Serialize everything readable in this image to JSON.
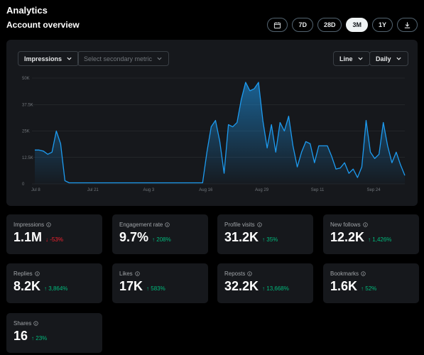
{
  "header": {
    "title": "Analytics",
    "section": "Account overview"
  },
  "ranges": [
    {
      "label": "",
      "icon": "calendar-icon"
    },
    {
      "label": "7D"
    },
    {
      "label": "28D"
    },
    {
      "label": "3M",
      "active": true
    },
    {
      "label": "1Y"
    },
    {
      "label": "",
      "icon": "download-icon"
    }
  ],
  "controls": {
    "primary_metric": "Impressions",
    "secondary_metric": "Select secondary metric",
    "chart_type": "Line",
    "interval": "Daily"
  },
  "chart_data": {
    "type": "area",
    "series": [
      {
        "values": [
          16,
          16,
          15.5,
          14,
          15,
          25,
          19,
          1.5,
          0.5,
          0.5,
          0.5,
          0.5,
          0.5,
          0.5,
          0.5,
          0.5,
          0.5,
          0.5,
          0.5,
          0.5,
          0.5,
          0.5,
          0.5,
          0.5,
          0.5,
          0.5,
          0.5,
          0.5,
          0.5,
          0.5,
          0.5,
          0.5,
          0.5,
          0.5,
          0.5,
          0.5,
          0.5,
          0.5,
          0.5,
          0.5,
          15,
          27,
          30,
          20,
          5,
          28,
          27,
          29,
          40,
          48,
          44,
          45,
          48,
          30,
          17,
          28,
          15,
          29,
          25,
          32,
          18,
          8,
          15,
          20,
          19,
          10,
          18,
          18,
          18,
          13,
          7,
          7.5,
          10,
          5,
          7,
          3,
          8,
          30,
          15,
          12,
          14,
          29,
          18,
          10,
          15,
          9,
          4
        ]
      }
    ],
    "x_ticks": [
      "Jul 8",
      "Jul 21",
      "Aug 3",
      "Aug 16",
      "Aug 29",
      "Sep 11",
      "Sep 24"
    ],
    "y_ticks": [
      "0",
      "12.5K",
      "25K",
      "37.5K",
      "50K"
    ],
    "ylim": [
      0,
      50
    ],
    "grid": true,
    "color": "#1d9bf0"
  },
  "metrics": [
    {
      "label": "Impressions",
      "value": "1.1M",
      "change": "-53%",
      "direction": "down"
    },
    {
      "label": "Engagement rate",
      "value": "9.7%",
      "change": "208%",
      "direction": "up"
    },
    {
      "label": "Profile visits",
      "value": "31.2K",
      "change": "35%",
      "direction": "up"
    },
    {
      "label": "New follows",
      "value": "12.2K",
      "change": "1,426%",
      "direction": "up"
    },
    {
      "label": "Replies",
      "value": "8.2K",
      "change": "3,864%",
      "direction": "up"
    },
    {
      "label": "Likes",
      "value": "17K",
      "change": "583%",
      "direction": "up"
    },
    {
      "label": "Reposts",
      "value": "32.2K",
      "change": "13,668%",
      "direction": "up"
    },
    {
      "label": "Bookmarks",
      "value": "1.6K",
      "change": "52%",
      "direction": "up"
    },
    {
      "label": "Shares",
      "value": "16",
      "change": "23%",
      "direction": "up"
    }
  ]
}
